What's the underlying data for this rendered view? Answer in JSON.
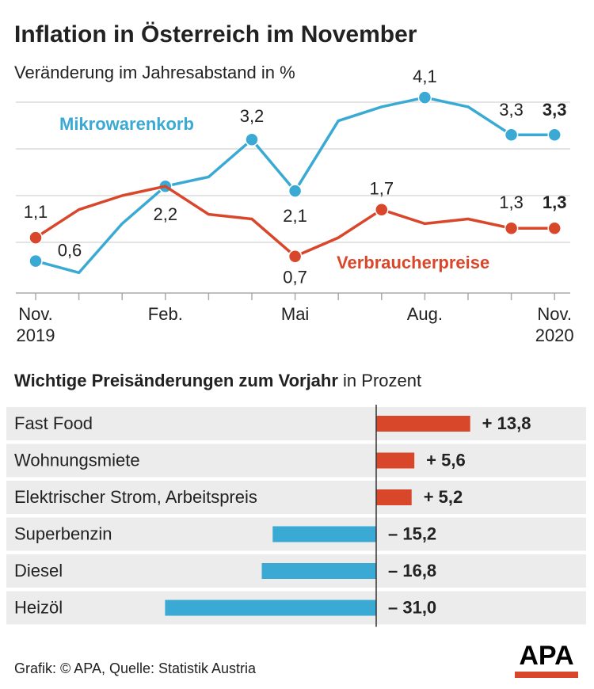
{
  "chart_data": [
    {
      "type": "line",
      "title": "Inflation in Österreich im November",
      "subtitle": "Veränderung im Jahresabstand in %",
      "categories": [
        "Nov.\n2019",
        null,
        null,
        "Feb.",
        null,
        null,
        "Mai",
        null,
        null,
        "Aug.",
        null,
        null,
        "Nov.\n2020"
      ],
      "series": [
        {
          "name": "Mikrowarenkorb",
          "color": "#3aaad4",
          "values": [
            0.6,
            0.35,
            1.4,
            2.2,
            2.4,
            3.2,
            2.1,
            3.6,
            3.9,
            4.1,
            3.9,
            3.3,
            3.3
          ],
          "value_labels": [
            "0,6",
            null,
            null,
            "2,2",
            null,
            "3,2",
            "2,1",
            null,
            null,
            "4,1",
            null,
            "3,3",
            "3,3"
          ]
        },
        {
          "name": "Verbraucherpreise",
          "color": "#d9472b",
          "values": [
            1.1,
            1.7,
            2.0,
            2.2,
            1.6,
            1.5,
            0.7,
            1.1,
            1.7,
            1.4,
            1.5,
            1.3,
            1.3
          ],
          "value_labels": [
            "1,1",
            null,
            null,
            null,
            null,
            null,
            "0,7",
            null,
            "1,7",
            null,
            null,
            "1,3",
            "1,3"
          ]
        }
      ],
      "ylim": [
        0,
        4.5
      ],
      "yticks": [
        1,
        2,
        3,
        4
      ],
      "grid": true
    },
    {
      "type": "hbar",
      "title": "Wichtige Preisänderungen zum Vorjahr",
      "subtitle": "in Prozent",
      "categories": [
        "Fast Food",
        "Wohnungsmiete",
        "Elektrischer Strom, Arbeitspreis",
        "Superbenzin",
        "Diesel",
        "Heizöl"
      ],
      "values": [
        13.8,
        5.6,
        5.2,
        -15.2,
        -16.8,
        -31.0
      ],
      "value_labels": [
        "+ 13,8",
        "+ 5,6",
        "+ 5,2",
        "– 15,2",
        "– 16,8",
        "– 31,0"
      ],
      "positive_color": "#d9472b",
      "negative_color": "#3aaad4",
      "xlim": [
        -35,
        30
      ]
    }
  ],
  "footer": "Grafik: © APA, Quelle: Statistik Austria",
  "logo": "APA"
}
